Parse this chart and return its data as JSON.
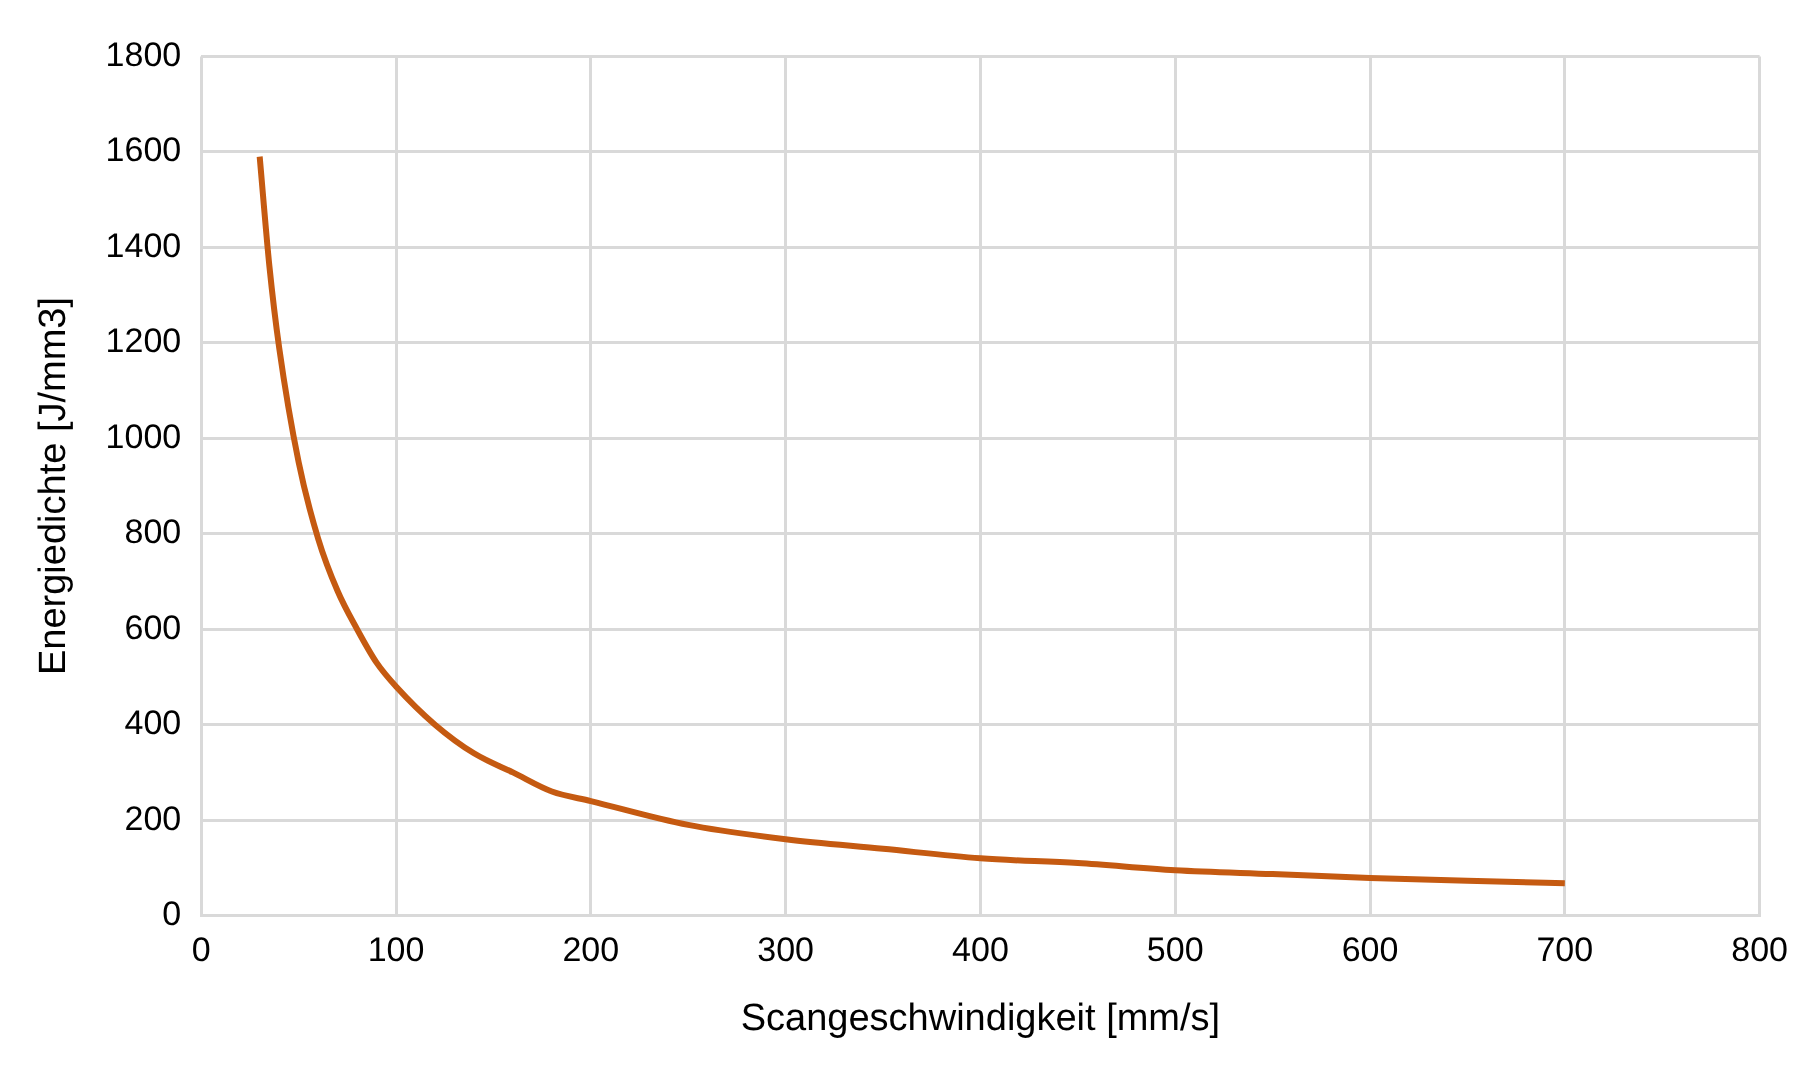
{
  "chart_data": {
    "type": "line",
    "xlabel": "Scangeschwindigkeit [mm/s]",
    "ylabel": "Energiedichte [J/mm3]",
    "x": [
      30,
      35,
      40,
      50,
      60,
      70,
      80,
      90,
      100,
      120,
      140,
      160,
      180,
      200,
      250,
      300,
      350,
      400,
      450,
      500,
      550,
      600,
      650,
      700
    ],
    "series": [
      {
        "color": "#c55a11",
        "values": [
          1590,
          1360,
          1190,
          950,
          790,
          680,
          600,
          530,
          480,
          400,
          340,
          300,
          260,
          240,
          190,
          160,
          140,
          120,
          110,
          95,
          87,
          79,
          73,
          68
        ]
      }
    ],
    "xlim": [
      0,
      800
    ],
    "xticks": [
      0,
      100,
      200,
      300,
      400,
      500,
      600,
      700,
      800
    ],
    "ylim": [
      0,
      1800
    ],
    "yticks": [
      0,
      200,
      400,
      600,
      800,
      1000,
      1200,
      1400,
      1600,
      1800
    ],
    "grid": true,
    "legend": false,
    "marker": "none",
    "line_style": "solid"
  }
}
